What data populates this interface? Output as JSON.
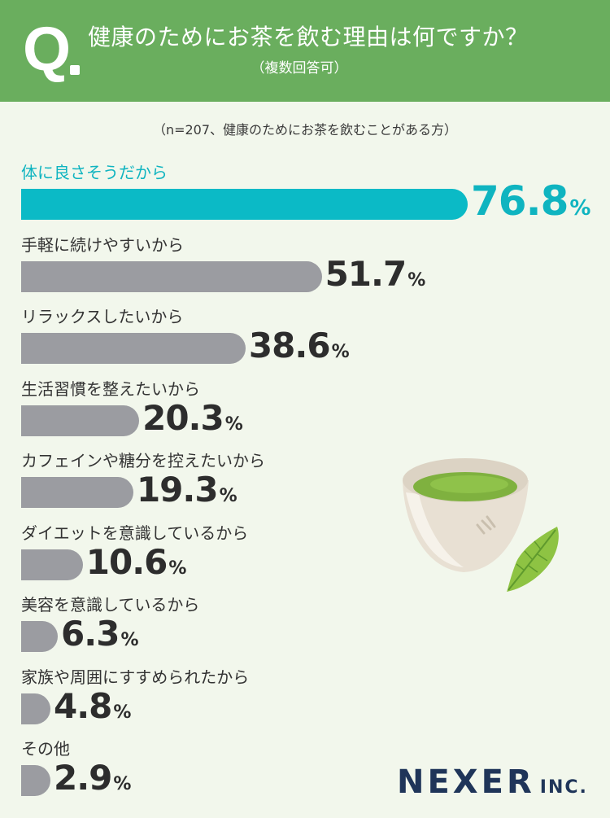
{
  "header": {
    "q_label": "Q",
    "question": "健康のためにお茶を飲む理由は何ですか？",
    "note": "（複数回答可）"
  },
  "sample_note": "（n=207、健康のためにお茶を飲むことがある方）",
  "unit": "%",
  "colors": {
    "header_bg": "#6aae5e",
    "background": "#f2f7ec",
    "highlight": "#0bbac6",
    "bar": "#9b9ca1"
  },
  "chart_data": {
    "type": "bar",
    "orientation": "horizontal",
    "categories": [
      "体に良さそうだから",
      "手軽に続けやすいから",
      "リラックスしたいから",
      "生活習慣を整えたいから",
      "カフェインや糖分を控えたいから",
      "ダイエットを意識しているから",
      "美容を意識しているから",
      "家族や周囲にすすめられたから",
      "その他"
    ],
    "values": [
      76.8,
      51.7,
      38.6,
      20.3,
      19.3,
      10.6,
      6.3,
      4.8,
      2.9
    ],
    "value_labels": [
      "76.8",
      "51.7",
      "38.6",
      "20.3",
      "19.3",
      "10.6",
      "6.3",
      "4.8",
      "2.9"
    ],
    "highlight_index": 0,
    "grid": false,
    "legend": "none"
  },
  "logo": {
    "name": "NEXER",
    "suffix": "INC."
  },
  "illustration": {
    "icon": "green-tea-cup-with-leaf-icon"
  }
}
